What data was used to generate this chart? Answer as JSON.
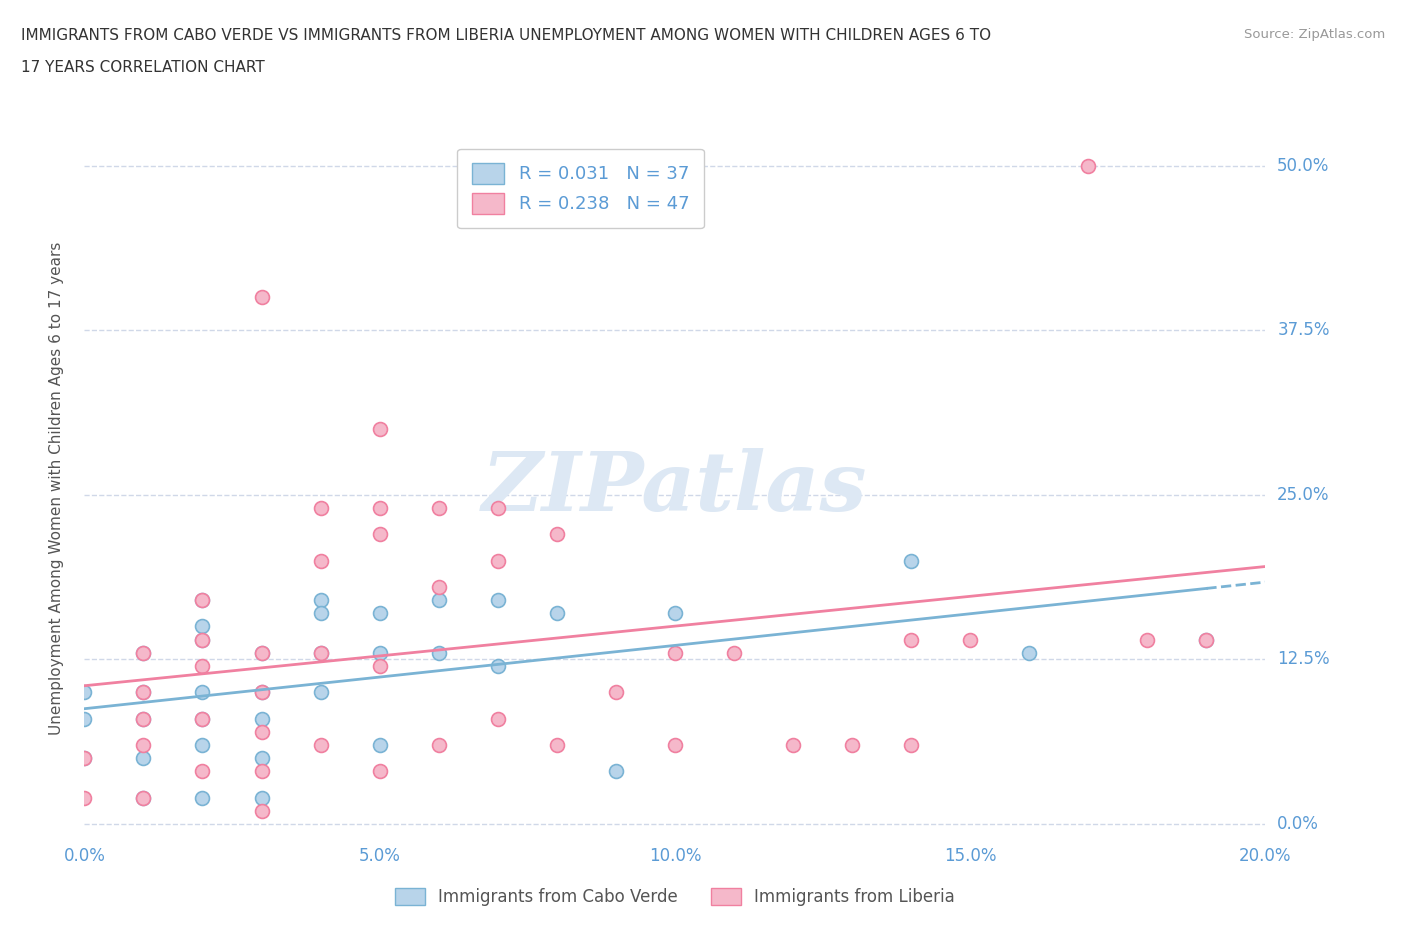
{
  "title_line1": "IMMIGRANTS FROM CABO VERDE VS IMMIGRANTS FROM LIBERIA UNEMPLOYMENT AMONG WOMEN WITH CHILDREN AGES 6 TO",
  "title_line2": "17 YEARS CORRELATION CHART",
  "source": "Source: ZipAtlas.com",
  "ylabel": "Unemployment Among Women with Children Ages 6 to 17 years",
  "xlim": [
    0.0,
    0.2
  ],
  "ylim": [
    -0.02,
    0.52
  ],
  "yticks": [
    0.0,
    0.125,
    0.25,
    0.375,
    0.5
  ],
  "ytick_labels": [
    "0.0%",
    "12.5%",
    "25.0%",
    "37.5%",
    "50.0%"
  ],
  "xticks": [
    0.0,
    0.05,
    0.1,
    0.15,
    0.2
  ],
  "xtick_labels": [
    "0.0%",
    "5.0%",
    "10.0%",
    "15.0%",
    "20.0%"
  ],
  "cabo_verde_fill": "#b8d4ea",
  "cabo_verde_edge": "#7ab3d4",
  "liberia_fill": "#f5b8ca",
  "liberia_edge": "#f080a0",
  "cabo_verde_line_color": "#7ab3d4",
  "liberia_line_color": "#f080a0",
  "R_cabo": 0.031,
  "N_cabo": 37,
  "R_liberia": 0.238,
  "N_liberia": 47,
  "cabo_verde_x": [
    0.0,
    0.0,
    0.0,
    0.01,
    0.01,
    0.01,
    0.01,
    0.01,
    0.02,
    0.02,
    0.02,
    0.02,
    0.02,
    0.02,
    0.02,
    0.03,
    0.03,
    0.03,
    0.03,
    0.03,
    0.04,
    0.04,
    0.04,
    0.04,
    0.05,
    0.05,
    0.05,
    0.06,
    0.06,
    0.07,
    0.07,
    0.08,
    0.09,
    0.1,
    0.14,
    0.16,
    0.19
  ],
  "cabo_verde_y": [
    0.1,
    0.08,
    0.05,
    0.13,
    0.1,
    0.08,
    0.05,
    0.02,
    0.17,
    0.15,
    0.14,
    0.1,
    0.08,
    0.06,
    0.02,
    0.13,
    0.1,
    0.08,
    0.05,
    0.02,
    0.17,
    0.16,
    0.13,
    0.1,
    0.16,
    0.13,
    0.06,
    0.17,
    0.13,
    0.17,
    0.12,
    0.16,
    0.04,
    0.16,
    0.2,
    0.13,
    0.14
  ],
  "liberia_x": [
    0.0,
    0.0,
    0.01,
    0.01,
    0.01,
    0.01,
    0.01,
    0.02,
    0.02,
    0.02,
    0.02,
    0.02,
    0.03,
    0.03,
    0.03,
    0.03,
    0.03,
    0.03,
    0.04,
    0.04,
    0.04,
    0.04,
    0.05,
    0.05,
    0.05,
    0.05,
    0.05,
    0.06,
    0.06,
    0.06,
    0.07,
    0.07,
    0.07,
    0.08,
    0.08,
    0.09,
    0.1,
    0.1,
    0.11,
    0.12,
    0.13,
    0.14,
    0.14,
    0.15,
    0.17,
    0.18,
    0.19
  ],
  "liberia_y": [
    0.05,
    0.02,
    0.13,
    0.1,
    0.08,
    0.06,
    0.02,
    0.17,
    0.14,
    0.12,
    0.08,
    0.04,
    0.4,
    0.13,
    0.1,
    0.07,
    0.04,
    0.01,
    0.24,
    0.2,
    0.13,
    0.06,
    0.3,
    0.24,
    0.22,
    0.12,
    0.04,
    0.24,
    0.18,
    0.06,
    0.24,
    0.2,
    0.08,
    0.22,
    0.06,
    0.1,
    0.13,
    0.06,
    0.13,
    0.06,
    0.06,
    0.14,
    0.06,
    0.14,
    0.5,
    0.14,
    0.14
  ],
  "background_color": "#ffffff",
  "grid_color": "#d0d8e8",
  "axis_label_color": "#555555",
  "tick_label_color": "#5b9bd5",
  "watermark_color": "#dde8f4",
  "watermark_text": "ZIPatlas"
}
